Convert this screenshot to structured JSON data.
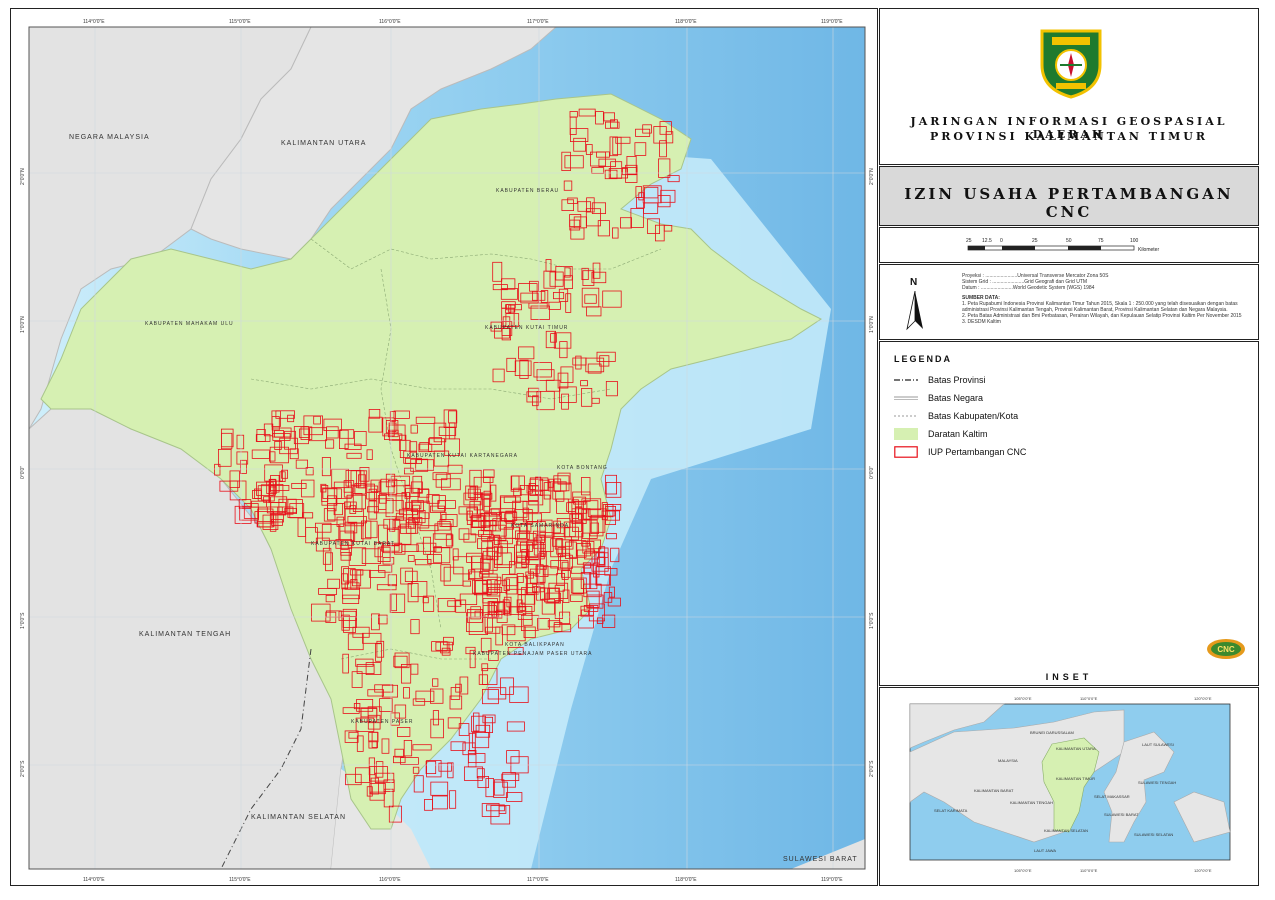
{
  "map": {
    "neighbors": {
      "malaysia": "NEGARA MALAYSIA",
      "kaltara": "KALIMANTAN UTARA",
      "kalteng": "KALIMANTAN TENGAH",
      "kalsel": "KALIMANTAN SELATAN",
      "sulbar": "SULAWESI BARAT"
    },
    "regions": {
      "berau": "KABUPATEN BERAU",
      "mahulu": "KABUPATEN MAHAKAM ULU",
      "kutim": "KABUPATEN KUTAI TIMUR",
      "kukar": "KABUPATEN KUTAI KARTANEGARA",
      "kubar": "KABUPATEN KUTAI BARAT",
      "bontang": "KOTA BONTANG",
      "samarinda": "KOTA SAMARINDA",
      "balikpapan": "KOTA BALIKPAPAN",
      "ppu": "KABUPATEN PENAJAM PASER UTARA",
      "paser": "KABUPATEN PASER"
    },
    "top_ticks": [
      "114°0'0\"E",
      "115°0'0\"E",
      "116°0'0\"E",
      "117°0'0\"E",
      "118°0'0\"E",
      "119°0'0\"E"
    ],
    "side_ticks": [
      "3°0'0\"N",
      "2°0'0\"N",
      "1°0'0\"N",
      "0°0'0\"",
      "1°0'0\"S",
      "2°0'0\"S"
    ],
    "colors": {
      "land_kaltim": "#d6f0b2",
      "land_other": "#e4e4e4",
      "sea_shallow": "#c8ecfa",
      "sea_deep": "#8cc8ee",
      "iup": "#e8101a"
    }
  },
  "header": {
    "org_line1": "JARINGAN INFORMASI GEOSPASIAL DAERAH",
    "org_line2": "PROVINSI KALIMANTAN TIMUR",
    "map_title": "IZIN USAHA PERTAMBANGAN CNC",
    "logo_text": "KALIMANTAN TIMUR"
  },
  "scale": {
    "ticks": [
      "25",
      "12.5",
      "0",
      "25",
      "50",
      "75",
      "100"
    ],
    "unit": "Kilometer"
  },
  "info": {
    "north": "N",
    "proyeksi": "Proyeksi      : .......................Universal Transverse Mercator Zona 50S",
    "sistem_grid": "Sistem Grid   : .......................Grid Geografi dan Grid UTM",
    "datum": "Datum          : .......................World Geodetic System (WGS) 1984",
    "sumber_title": "SUMBER DATA:",
    "sumber_1": "1. Peta Rupabumi Indonesia Provinsi Kalimantan Timur Tahun 2015, Skala 1 : 250.000 yang telah disesuaikan dengan batas administrasi Provinsi Kalimantan Tengah, Provinsi Kalimantan Barat, Provinsi Kalimantan Selatan dan Negara Malaysia.",
    "sumber_2": "2. Peta Batas Administrasi dan Bmi Perbatasan, Perairan Wilayah, dan Kepulauan Selatip Provinsi Kaltim Per November 2015",
    "sumber_3": "3. DESDM Kaltim"
  },
  "legend": {
    "title": "LEGENDA",
    "items": [
      {
        "label": "Batas Provinsi",
        "symbol": "dash-dot"
      },
      {
        "label": "Batas Negara",
        "symbol": "double-grey"
      },
      {
        "label": "Batas Kabupaten/Kota",
        "symbol": "dotted"
      },
      {
        "label": "Daratan Kaltim",
        "symbol": "green-fill"
      },
      {
        "label": "IUP Pertambangan CNC",
        "symbol": "red-outline"
      }
    ],
    "badge_text": "CNC"
  },
  "inset": {
    "title": "INSET",
    "top_ticks": [
      "105°0'0\"E",
      "110°0'0\"E",
      "120°0'0\"E"
    ],
    "bottom_ticks": [
      "105°0'0\"E",
      "110°0'0\"E",
      "120°0'0\"E"
    ],
    "labels": {
      "brunei": "BRUNEI DARUSSALAM",
      "malaysia": "MALAYSIA",
      "kaltara": "KALIMANTAN UTARA",
      "kaltim": "KALIMANTAN TIMUR",
      "kalbar": "KALIMANTAN BARAT",
      "kalteng": "KALIMANTAN TENGAH",
      "kalsel": "KALIMANTAN SELATAN",
      "sulbar": "SULAWESI BARAT",
      "sulteng": "SULAWESI TENGAH",
      "sulsel": "SULAWESI SELATAN",
      "laut_jawa": "LAUT JAWA",
      "laut_sulawesi": "LAUT SULAWESI",
      "selat_makassar": "SELAT MAKASSAR",
      "selat_karimata": "SELAT KARIMATA"
    }
  }
}
